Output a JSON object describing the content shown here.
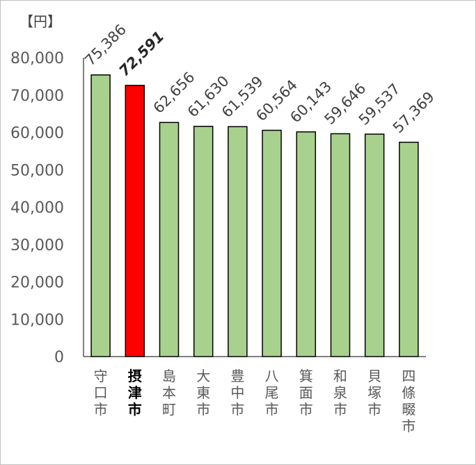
{
  "chart_data": {
    "type": "bar",
    "unit_label": "【円】",
    "categories": [
      "守口市",
      "摂津市",
      "島本町",
      "大東市",
      "豊中市",
      "八尾市",
      "箕面市",
      "和泉市",
      "貝塚市",
      "四條畷市"
    ],
    "values": [
      75386,
      72591,
      62656,
      61630,
      61539,
      60564,
      60143,
      59646,
      59537,
      57369
    ],
    "value_labels": [
      "75,386",
      "72,591",
      "62,656",
      "61,630",
      "61,539",
      "60,564",
      "60,143",
      "59,646",
      "59,537",
      "57,369"
    ],
    "highlight_index": 1,
    "yticks": [
      "0",
      "10,000",
      "20,000",
      "30,000",
      "40,000",
      "50,000",
      "60,000",
      "70,000",
      "80,000"
    ],
    "ylim": [
      0,
      80000
    ],
    "colors": {
      "bar": "#a9d18e",
      "highlight": "#ff0000",
      "outline": "#000000"
    },
    "grid": false,
    "legend": "none"
  }
}
